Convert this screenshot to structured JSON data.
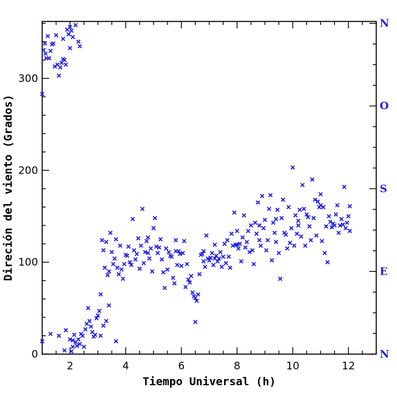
{
  "chart_data": {
    "type": "scatter",
    "xlabel": "Tiempo Universal (h)",
    "ylabel": "Direción del viento (Grados)",
    "xlim": [
      1,
      13
    ],
    "ylim": [
      0,
      362
    ],
    "x_ticks": [
      2,
      4,
      6,
      8,
      10,
      12
    ],
    "y_ticks": [
      0,
      100,
      200,
      300
    ],
    "right_axis_labels": [
      {
        "value": 0,
        "label": "N"
      },
      {
        "value": 90,
        "label": "E"
      },
      {
        "value": 180,
        "label": "S"
      },
      {
        "value": 270,
        "label": "O"
      },
      {
        "value": 360,
        "label": "N"
      }
    ],
    "grid": false,
    "marker": "x",
    "colors": {
      "points": "#1f1fe6",
      "right_labels": "#1f1fe6",
      "axes": "#000000"
    },
    "points": [
      [
        1.0,
        283
      ],
      [
        1.05,
        331
      ],
      [
        1.1,
        338
      ],
      [
        1.12,
        327
      ],
      [
        1.15,
        322
      ],
      [
        1.2,
        346
      ],
      [
        1.25,
        322
      ],
      [
        1.3,
        330
      ],
      [
        1.35,
        337
      ],
      [
        1.4,
        338
      ],
      [
        1.45,
        313
      ],
      [
        1.5,
        347
      ],
      [
        1.55,
        315
      ],
      [
        1.6,
        303
      ],
      [
        1.65,
        312
      ],
      [
        1.7,
        317
      ],
      [
        1.75,
        321
      ],
      [
        1.8,
        320
      ],
      [
        1.85,
        315
      ],
      [
        1.9,
        353
      ],
      [
        1.95,
        348
      ],
      [
        2.0,
        356
      ],
      [
        2.05,
        352
      ],
      [
        2.1,
        345
      ],
      [
        2.2,
        358
      ],
      [
        2.3,
        340
      ],
      [
        2.35,
        335
      ],
      [
        2.0,
        333
      ],
      [
        1.75,
        343
      ],
      [
        1.0,
        14
      ],
      [
        1.3,
        22
      ],
      [
        1.6,
        20
      ],
      [
        1.85,
        26
      ],
      [
        2.0,
        16
      ],
      [
        2.05,
        3
      ],
      [
        2.1,
        8
      ],
      [
        2.15,
        21
      ],
      [
        2.2,
        13
      ],
      [
        2.25,
        9
      ],
      [
        2.3,
        16
      ],
      [
        2.35,
        11
      ],
      [
        2.4,
        22
      ],
      [
        2.45,
        20
      ],
      [
        2.5,
        8
      ],
      [
        2.55,
        27
      ],
      [
        2.6,
        33
      ],
      [
        2.65,
        50
      ],
      [
        2.7,
        36
      ],
      [
        2.75,
        30
      ],
      [
        2.8,
        24
      ],
      [
        2.85,
        19
      ],
      [
        2.9,
        21
      ],
      [
        2.95,
        39
      ],
      [
        3.0,
        42
      ],
      [
        3.05,
        47
      ],
      [
        3.1,
        20
      ],
      [
        3.2,
        31
      ],
      [
        3.3,
        36
      ],
      [
        3.4,
        53
      ],
      [
        1.8,
        4
      ],
      [
        2.1,
        15
      ],
      [
        3.65,
        14
      ],
      [
        3.1,
        65
      ],
      [
        3.15,
        124
      ],
      [
        3.2,
        113
      ],
      [
        3.25,
        94
      ],
      [
        3.3,
        122
      ],
      [
        3.35,
        86
      ],
      [
        3.4,
        90
      ],
      [
        3.45,
        132
      ],
      [
        3.5,
        111
      ],
      [
        3.55,
        98
      ],
      [
        3.6,
        104
      ],
      [
        3.65,
        125
      ],
      [
        3.7,
        94
      ],
      [
        3.75,
        87
      ],
      [
        3.8,
        118
      ],
      [
        3.85,
        92
      ],
      [
        3.9,
        82
      ],
      [
        3.95,
        98
      ],
      [
        4.0,
        108
      ],
      [
        4.05,
        107
      ],
      [
        4.1,
        117
      ],
      [
        4.15,
        100
      ],
      [
        4.2,
        97
      ],
      [
        4.25,
        147
      ],
      [
        4.3,
        113
      ],
      [
        4.35,
        103
      ],
      [
        4.4,
        109
      ],
      [
        4.45,
        126
      ],
      [
        4.5,
        93
      ],
      [
        4.55,
        118
      ],
      [
        4.6,
        158
      ],
      [
        4.65,
        99
      ],
      [
        4.7,
        111
      ],
      [
        4.75,
        123
      ],
      [
        4.8,
        127
      ],
      [
        4.85,
        104
      ],
      [
        4.9,
        115
      ],
      [
        4.95,
        90
      ],
      [
        5.0,
        137
      ],
      [
        5.05,
        148
      ],
      [
        5.1,
        117
      ],
      [
        5.15,
        110
      ],
      [
        5.2,
        116
      ],
      [
        5.25,
        125
      ],
      [
        5.3,
        103
      ],
      [
        5.35,
        89
      ],
      [
        5.4,
        72
      ],
      [
        5.45,
        115
      ],
      [
        5.5,
        92
      ],
      [
        5.55,
        111
      ],
      [
        5.6,
        107
      ],
      [
        5.65,
        106
      ],
      [
        5.7,
        83
      ],
      [
        5.75,
        77
      ],
      [
        5.8,
        124
      ],
      [
        5.85,
        97
      ],
      [
        5.9,
        112
      ],
      [
        5.95,
        109
      ],
      [
        6.0,
        96
      ],
      [
        6.05,
        110
      ],
      [
        6.1,
        123
      ],
      [
        6.15,
        73
      ],
      [
        6.2,
        98
      ],
      [
        6.25,
        81
      ],
      [
        6.3,
        78
      ],
      [
        6.35,
        85
      ],
      [
        6.4,
        67
      ],
      [
        6.45,
        63
      ],
      [
        6.5,
        61
      ],
      [
        6.55,
        58
      ],
      [
        6.5,
        35
      ],
      [
        6.6,
        65
      ],
      [
        6.65,
        87
      ],
      [
        6.7,
        108
      ],
      [
        6.75,
        109
      ],
      [
        6.8,
        101
      ],
      [
        6.85,
        95
      ],
      [
        6.9,
        129
      ],
      [
        6.95,
        104
      ],
      [
        7.0,
        102
      ],
      [
        7.05,
        105
      ],
      [
        7.1,
        110
      ],
      [
        7.15,
        97
      ],
      [
        7.2,
        119
      ],
      [
        7.25,
        107
      ],
      [
        7.3,
        101
      ],
      [
        7.35,
        104
      ],
      [
        7.4,
        111
      ],
      [
        7.45,
        95
      ],
      [
        7.5,
        106
      ],
      [
        7.55,
        120
      ],
      [
        7.6,
        99
      ],
      [
        7.65,
        124
      ],
      [
        7.7,
        106
      ],
      [
        7.75,
        94
      ],
      [
        7.8,
        131
      ],
      [
        7.85,
        118
      ],
      [
        7.9,
        154
      ],
      [
        7.95,
        119
      ],
      [
        8.0,
        134
      ],
      [
        8.05,
        115
      ],
      [
        8.1,
        120
      ],
      [
        8.15,
        101
      ],
      [
        8.2,
        127
      ],
      [
        8.25,
        151
      ],
      [
        8.3,
        116
      ],
      [
        8.35,
        122
      ],
      [
        8.4,
        134
      ],
      [
        8.45,
        111
      ],
      [
        8.5,
        140
      ],
      [
        8.55,
        113
      ],
      [
        8.6,
        98
      ],
      [
        8.65,
        143
      ],
      [
        8.7,
        131
      ],
      [
        8.75,
        165
      ],
      [
        8.8,
        124
      ],
      [
        8.85,
        118
      ],
      [
        8.9,
        172
      ],
      [
        8.95,
        137
      ],
      [
        9.0,
        146
      ],
      [
        9.05,
        113
      ],
      [
        9.1,
        124
      ],
      [
        9.15,
        158
      ],
      [
        9.2,
        173
      ],
      [
        9.25,
        102
      ],
      [
        9.3,
        143
      ],
      [
        9.35,
        132
      ],
      [
        9.4,
        122
      ],
      [
        9.45,
        157
      ],
      [
        9.5,
        110
      ],
      [
        9.55,
        82
      ],
      [
        9.6,
        148
      ],
      [
        9.65,
        168
      ],
      [
        9.7,
        132
      ],
      [
        9.75,
        130
      ],
      [
        9.8,
        115
      ],
      [
        9.85,
        160
      ],
      [
        9.9,
        121
      ],
      [
        9.95,
        137
      ],
      [
        10.0,
        203
      ],
      [
        10.05,
        118
      ],
      [
        10.1,
        151
      ],
      [
        10.15,
        131
      ],
      [
        10.2,
        140
      ],
      [
        10.25,
        157
      ],
      [
        10.3,
        128
      ],
      [
        10.35,
        184
      ],
      [
        10.4,
        158
      ],
      [
        10.45,
        118
      ],
      [
        10.5,
        152
      ],
      [
        10.55,
        149
      ],
      [
        10.6,
        139
      ],
      [
        10.65,
        124
      ],
      [
        10.7,
        190
      ],
      [
        10.75,
        148
      ],
      [
        10.8,
        168
      ],
      [
        10.85,
        129
      ],
      [
        10.9,
        166
      ],
      [
        10.95,
        160
      ],
      [
        11.0,
        174
      ],
      [
        11.05,
        123
      ],
      [
        11.1,
        160
      ],
      [
        11.15,
        110
      ],
      [
        11.2,
        139
      ],
      [
        11.25,
        100
      ],
      [
        11.3,
        150
      ],
      [
        11.35,
        144
      ],
      [
        11.4,
        138
      ],
      [
        11.45,
        142
      ],
      [
        11.5,
        140
      ],
      [
        11.55,
        152
      ],
      [
        11.6,
        162
      ],
      [
        11.65,
        132
      ],
      [
        11.7,
        140
      ],
      [
        11.75,
        147
      ],
      [
        11.8,
        141
      ],
      [
        11.85,
        182
      ],
      [
        11.9,
        137
      ],
      [
        11.95,
        143
      ],
      [
        12.0,
        150
      ],
      [
        12.05,
        134
      ],
      [
        12.05,
        161
      ],
      [
        11.0,
        162
      ],
      [
        10.2,
        145
      ],
      [
        9.4,
        147
      ],
      [
        8.8,
        140
      ],
      [
        8.0,
        119
      ],
      [
        7.2,
        104
      ],
      [
        6.8,
        112
      ],
      [
        5.8,
        112
      ],
      [
        4.8,
        110
      ]
    ]
  }
}
